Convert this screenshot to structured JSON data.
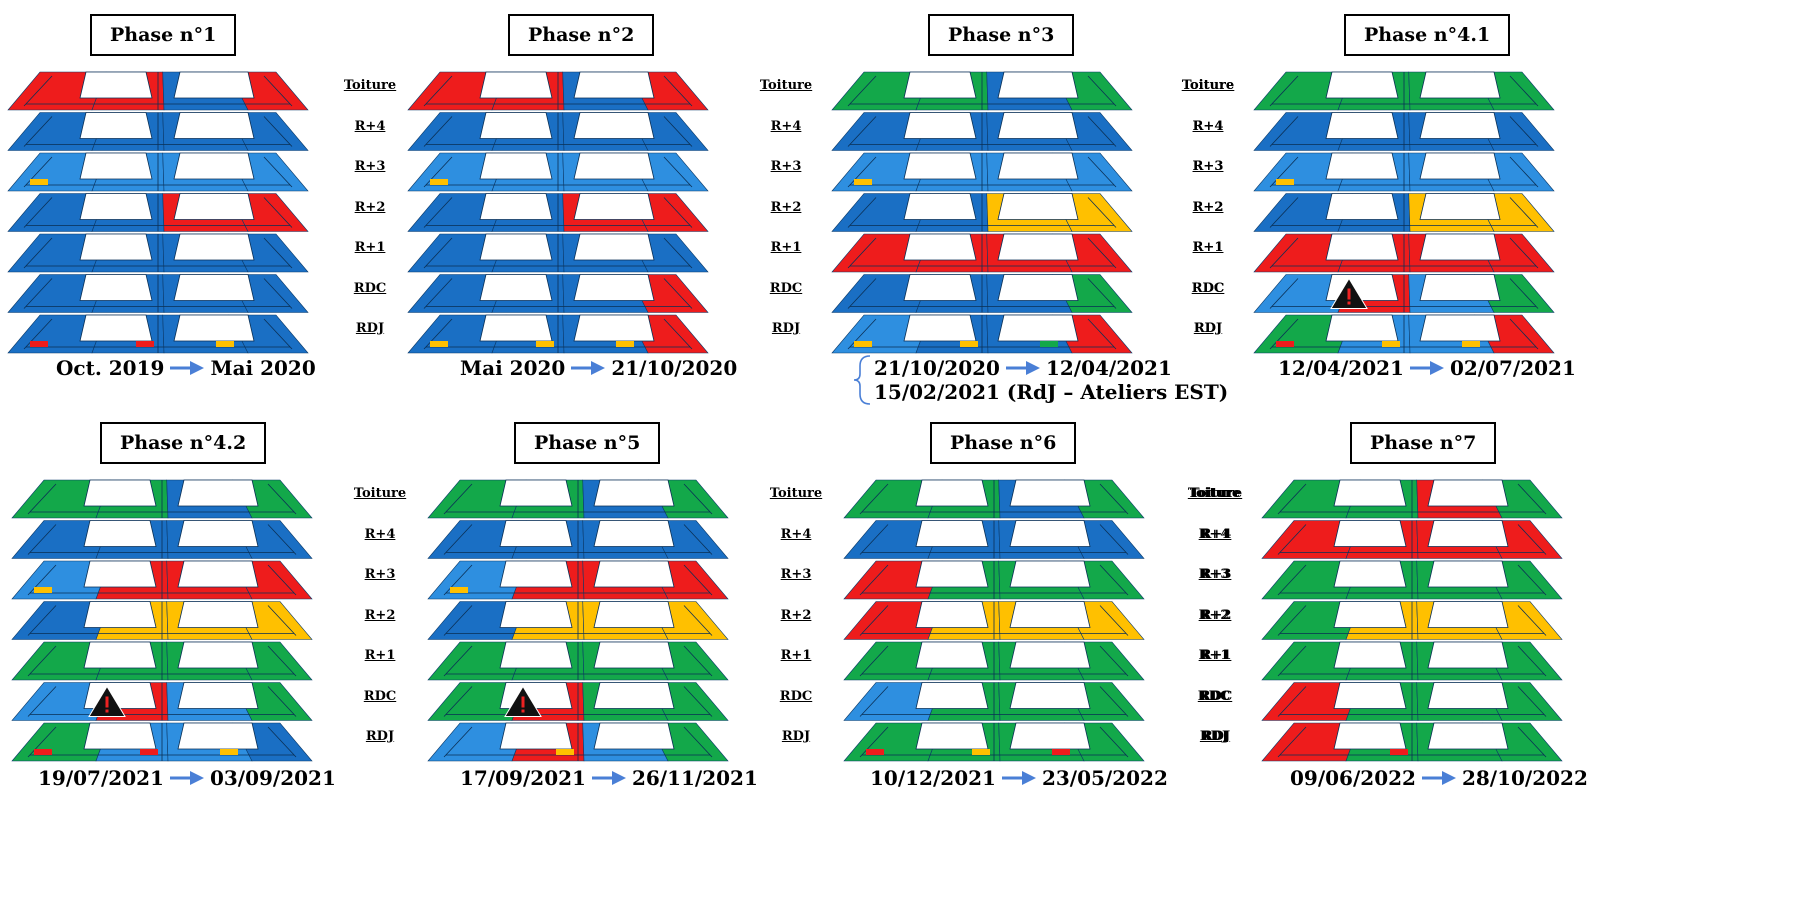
{
  "colors": {
    "blue": "#1a6fc4",
    "light_blue": "#2e8fe0",
    "red": "#ee1c1c",
    "green": "#13a84a",
    "light_green": "#1fd06a",
    "yellow": "#ffc000",
    "arrow": "#4a7fd6"
  },
  "floors": [
    "Toiture",
    "R+4",
    "R+3",
    "R+2",
    "R+1",
    "RDC",
    "RDJ"
  ],
  "phases": [
    {
      "title": "Phase n°1",
      "dates": [
        {
          "from": "Oct. 2019",
          "to": "Mai 2020"
        }
      ],
      "levels": [
        {
          "segments": [
            "red",
            "red",
            "blue",
            "red"
          ]
        },
        {
          "segments": [
            "blue",
            "blue",
            "blue",
            "blue"
          ]
        },
        {
          "segments": [
            "light_blue",
            "light_blue",
            "light_blue",
            "light_blue"
          ],
          "marks": [
            "yellow-left"
          ]
        },
        {
          "segments": [
            "blue",
            "blue",
            "red",
            "red"
          ]
        },
        {
          "segments": [
            "blue",
            "blue",
            "blue",
            "blue"
          ]
        },
        {
          "segments": [
            "blue",
            "blue",
            "blue",
            "blue"
          ]
        },
        {
          "segments": [
            "blue",
            "blue",
            "blue",
            "blue"
          ],
          "marks": [
            "red-left",
            "red-mid",
            "yellow-right"
          ]
        }
      ]
    },
    {
      "title": "Phase n°2",
      "dates": [
        {
          "from": "Mai 2020",
          "to": "21/10/2020"
        }
      ],
      "levels": [
        {
          "segments": [
            "red",
            "red",
            "blue",
            "red"
          ]
        },
        {
          "segments": [
            "blue",
            "blue",
            "blue",
            "blue"
          ]
        },
        {
          "segments": [
            "light_blue",
            "light_blue",
            "light_blue",
            "light_blue"
          ],
          "marks": [
            "yellow-left"
          ]
        },
        {
          "segments": [
            "blue",
            "blue",
            "red",
            "red"
          ]
        },
        {
          "segments": [
            "blue",
            "blue",
            "blue",
            "blue"
          ]
        },
        {
          "segments": [
            "blue",
            "blue",
            "blue",
            "red"
          ]
        },
        {
          "segments": [
            "blue",
            "blue",
            "blue",
            "red"
          ],
          "marks": [
            "red-left",
            "yellow-left",
            "yellow-mid",
            "yellow-right"
          ]
        }
      ]
    },
    {
      "title": "Phase n°3",
      "dates": [
        {
          "from": "21/10/2020",
          "to": "12/04/2021"
        },
        {
          "text": "15/02/2021 (RdJ – Ateliers EST)"
        }
      ],
      "levels": [
        {
          "segments": [
            "green",
            "green",
            "blue",
            "green"
          ]
        },
        {
          "segments": [
            "blue",
            "blue",
            "blue",
            "blue"
          ]
        },
        {
          "segments": [
            "light_blue",
            "light_blue",
            "light_blue",
            "light_blue"
          ],
          "marks": [
            "yellow-left"
          ]
        },
        {
          "segments": [
            "blue",
            "blue",
            "yellow",
            "yellow"
          ]
        },
        {
          "segments": [
            "red",
            "red",
            "red",
            "red"
          ]
        },
        {
          "segments": [
            "blue",
            "blue",
            "blue",
            "green"
          ]
        },
        {
          "segments": [
            "light_blue",
            "blue",
            "blue",
            "red"
          ],
          "marks": [
            "red-left",
            "yellow-left",
            "yellow-mid",
            "green-right"
          ]
        }
      ]
    },
    {
      "title": "Phase n°4.1",
      "dates": [
        {
          "from": "12/04/2021",
          "to": "02/07/2021"
        }
      ],
      "levels": [
        {
          "segments": [
            "green",
            "green",
            "green",
            "green"
          ]
        },
        {
          "segments": [
            "blue",
            "blue",
            "blue",
            "blue"
          ]
        },
        {
          "segments": [
            "light_blue",
            "light_blue",
            "light_blue",
            "light_blue"
          ],
          "marks": [
            "yellow-left"
          ]
        },
        {
          "segments": [
            "blue",
            "blue",
            "yellow",
            "yellow"
          ]
        },
        {
          "segments": [
            "red",
            "red",
            "red",
            "red"
          ]
        },
        {
          "segments": [
            "light_blue",
            "red",
            "light_blue",
            "green"
          ],
          "warning": true
        },
        {
          "segments": [
            "green",
            "light_blue",
            "light_blue",
            "red"
          ],
          "marks": [
            "red-left",
            "yellow-mid",
            "yellow-right"
          ]
        }
      ]
    },
    {
      "title": "Phase n°4.2",
      "dates": [
        {
          "from": "19/07/2021",
          "to": "03/09/2021"
        }
      ],
      "levels": [
        {
          "segments": [
            "green",
            "green",
            "blue",
            "green"
          ]
        },
        {
          "segments": [
            "blue",
            "blue",
            "blue",
            "blue"
          ]
        },
        {
          "segments": [
            "light_blue",
            "red",
            "red",
            "red"
          ],
          "marks": [
            "yellow-left"
          ]
        },
        {
          "segments": [
            "blue",
            "yellow",
            "yellow",
            "yellow"
          ]
        },
        {
          "segments": [
            "green",
            "green",
            "green",
            "green"
          ]
        },
        {
          "segments": [
            "light_blue",
            "red",
            "light_blue",
            "green"
          ],
          "warning": true
        },
        {
          "segments": [
            "green",
            "light_blue",
            "light_blue",
            "blue"
          ],
          "marks": [
            "red-left",
            "yellow-mid",
            "yellow-right",
            "red-mid"
          ]
        }
      ]
    },
    {
      "title": "Phase n°5",
      "dates": [
        {
          "from": "17/09/2021",
          "to": "26/11/2021"
        }
      ],
      "levels": [
        {
          "segments": [
            "green",
            "green",
            "blue",
            "green"
          ]
        },
        {
          "segments": [
            "blue",
            "blue",
            "blue",
            "blue"
          ]
        },
        {
          "segments": [
            "light_blue",
            "red",
            "red",
            "red"
          ],
          "marks": [
            "yellow-left"
          ]
        },
        {
          "segments": [
            "blue",
            "yellow",
            "yellow",
            "yellow"
          ]
        },
        {
          "segments": [
            "green",
            "green",
            "green",
            "green"
          ]
        },
        {
          "segments": [
            "green",
            "red",
            "green",
            "green"
          ],
          "warning": true
        },
        {
          "segments": [
            "light_blue",
            "red",
            "light_blue",
            "green"
          ],
          "marks": [
            "red-mid",
            "yellow-mid"
          ]
        }
      ]
    },
    {
      "title": "Phase n°6",
      "dates": [
        {
          "from": "10/12/2021",
          "to": "23/05/2022"
        }
      ],
      "levels": [
        {
          "segments": [
            "green",
            "green",
            "blue",
            "green"
          ]
        },
        {
          "segments": [
            "blue",
            "blue",
            "blue",
            "blue"
          ]
        },
        {
          "segments": [
            "red",
            "green",
            "green",
            "green"
          ]
        },
        {
          "segments": [
            "red",
            "yellow",
            "yellow",
            "yellow"
          ]
        },
        {
          "segments": [
            "green",
            "green",
            "green",
            "green"
          ]
        },
        {
          "segments": [
            "light_blue",
            "green",
            "green",
            "green"
          ]
        },
        {
          "segments": [
            "green",
            "green",
            "green",
            "green"
          ],
          "marks": [
            "red-left",
            "yellow-mid",
            "red-right"
          ]
        }
      ]
    },
    {
      "title": "Phase n°7",
      "dates": [
        {
          "from": "09/06/2022",
          "to": "28/10/2022"
        }
      ],
      "levels": [
        {
          "segments": [
            "green",
            "green",
            "red",
            "green"
          ]
        },
        {
          "segments": [
            "red",
            "red",
            "red",
            "red"
          ]
        },
        {
          "segments": [
            "green",
            "green",
            "green",
            "green"
          ]
        },
        {
          "segments": [
            "green",
            "yellow",
            "yellow",
            "yellow"
          ]
        },
        {
          "segments": [
            "green",
            "green",
            "green",
            "green"
          ]
        },
        {
          "segments": [
            "red",
            "green",
            "green",
            "green"
          ]
        },
        {
          "segments": [
            "red",
            "green",
            "green",
            "green"
          ],
          "marks": [
            "red-mid"
          ]
        }
      ]
    }
  ]
}
